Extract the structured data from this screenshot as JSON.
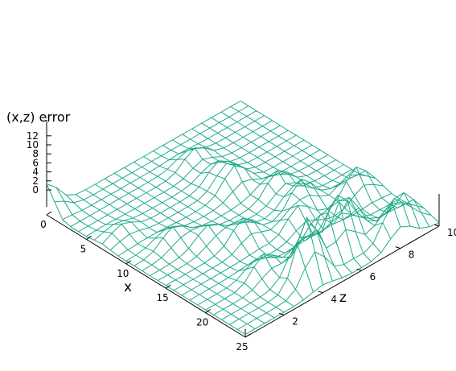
{
  "chart_data": {
    "type": "surface",
    "title": "",
    "xlabel": "x",
    "ylabel": "z",
    "zlabel": "(x,z) error",
    "xlim": [
      0,
      25
    ],
    "ylim": [
      0,
      10
    ],
    "zlim": [
      0,
      12
    ],
    "x_ticks": [
      "0",
      "5",
      "10",
      "15",
      "20",
      "25"
    ],
    "y_ticks": [
      "2",
      "4",
      "6",
      "8",
      "10"
    ],
    "z_ticks": [
      "0",
      "2",
      "4",
      "6",
      "8",
      "10",
      "12"
    ],
    "grid": {
      "x_step": 1,
      "y_step": 0.5
    },
    "mesh_color": "#1faa8a",
    "baseline": 0.5,
    "peaks": [
      {
        "x": 23,
        "y": 4,
        "z": 11
      },
      {
        "x": 22,
        "y": 6,
        "z": 9
      },
      {
        "x": 21,
        "y": 7,
        "z": 6
      },
      {
        "x": 24,
        "y": 8,
        "z": 6
      },
      {
        "x": 23,
        "y": 9,
        "z": 5
      },
      {
        "x": 21,
        "y": 5,
        "z": 5
      },
      {
        "x": 20,
        "y": 3,
        "z": 4
      },
      {
        "x": 17,
        "y": 9,
        "z": 5
      },
      {
        "x": 15,
        "y": 7,
        "z": 5
      },
      {
        "x": 15,
        "y": 4,
        "z": 4
      },
      {
        "x": 12,
        "y": 7,
        "z": 4
      },
      {
        "x": 9,
        "y": 6,
        "z": 4
      },
      {
        "x": 7,
        "y": 6,
        "z": 3
      },
      {
        "x": 4,
        "y": 6,
        "z": 3
      },
      {
        "x": 17,
        "y": 6,
        "z": 4
      },
      {
        "x": 13,
        "y": 3,
        "z": 3
      },
      {
        "x": 11,
        "y": 2,
        "z": 3
      },
      {
        "x": 7,
        "y": 1,
        "z": 2
      },
      {
        "x": 0,
        "y": 0,
        "z": 5
      }
    ]
  }
}
